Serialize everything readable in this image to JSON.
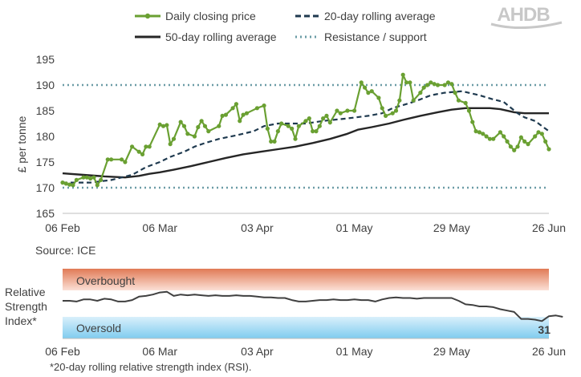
{
  "logo": {
    "text": "AHDB",
    "color": "#c8c8c8"
  },
  "source": "Source: ICE",
  "footnote": "*20-day rolling relative strength index (RSI).",
  "colors": {
    "daily": "#6aa032",
    "ma20": "#1f3a4f",
    "ma50": "#262626",
    "levels": "#6b9ca6",
    "rsi": "#404040",
    "overbought_top": "#e07a55",
    "overbought_bottom": "#fbe0d6",
    "oversold_top": "#d9f0fb",
    "oversold_bottom": "#7fccef"
  },
  "legend": [
    {
      "label": "Daily closing price",
      "style": "daily"
    },
    {
      "label": "20-day rolling average",
      "style": "ma20"
    },
    {
      "label": "50-day rolling average",
      "style": "ma50"
    },
    {
      "label": "Resistance / support",
      "style": "levels"
    }
  ],
  "chart_data": [
    {
      "type": "line",
      "ylabel": "£ per tonne",
      "ylim": [
        165,
        195
      ],
      "yticks": [
        165,
        170,
        175,
        180,
        185,
        190,
        195
      ],
      "xlim": [
        0,
        140
      ],
      "x_unit": "days from 06 Feb",
      "xticks": [
        {
          "x": 0,
          "label": "06 Feb"
        },
        {
          "x": 28,
          "label": "06 Mar"
        },
        {
          "x": 56,
          "label": "03 Apr"
        },
        {
          "x": 84,
          "label": "01 May"
        },
        {
          "x": 112,
          "label": "29 May"
        },
        {
          "x": 140,
          "label": "26 Jun"
        }
      ],
      "reference_lines": [
        {
          "name": "Resistance / support",
          "y": 190
        },
        {
          "name": "Resistance / support",
          "y": 170
        }
      ],
      "series": [
        {
          "name": "Daily closing price",
          "points": [
            [
              0,
              171
            ],
            [
              1,
              170.8
            ],
            [
              2,
              170.6
            ],
            [
              3,
              170.5
            ],
            [
              4,
              171.5
            ],
            [
              6,
              172
            ],
            [
              7,
              172
            ],
            [
              8,
              171.8
            ],
            [
              9,
              172
            ],
            [
              10,
              170.5
            ],
            [
              11,
              171.5
            ],
            [
              13,
              175.5
            ],
            [
              14,
              175.5
            ],
            [
              17,
              175.5
            ],
            [
              18,
              175
            ],
            [
              20,
              178
            ],
            [
              22,
              177
            ],
            [
              23,
              176.5
            ],
            [
              24,
              178
            ],
            [
              25,
              178
            ],
            [
              28,
              182.3
            ],
            [
              29,
              182
            ],
            [
              30,
              182.2
            ],
            [
              31,
              178.5
            ],
            [
              32,
              179.5
            ],
            [
              34,
              182.8
            ],
            [
              35,
              182
            ],
            [
              36,
              180.5
            ],
            [
              38,
              180
            ],
            [
              39,
              181.8
            ],
            [
              40,
              183
            ],
            [
              41,
              182
            ],
            [
              42,
              181
            ],
            [
              45,
              182
            ],
            [
              46,
              184
            ],
            [
              47,
              184.2
            ],
            [
              49,
              185.5
            ],
            [
              50,
              186.3
            ],
            [
              51,
              183
            ],
            [
              52,
              184.2
            ],
            [
              53,
              184.5
            ],
            [
              56,
              185.5
            ],
            [
              58,
              186
            ],
            [
              59,
              181.5
            ],
            [
              60,
              179
            ],
            [
              61,
              179
            ],
            [
              62,
              181
            ],
            [
              63,
              182.5
            ],
            [
              65,
              182
            ],
            [
              66,
              181.5
            ],
            [
              67,
              179.5
            ],
            [
              68,
              182
            ],
            [
              70,
              183
            ],
            [
              71,
              183.5
            ],
            [
              72,
              181
            ],
            [
              73,
              181
            ],
            [
              74,
              182
            ],
            [
              75,
              183.5
            ],
            [
              76,
              184
            ],
            [
              77,
              182.7
            ],
            [
              79,
              185
            ],
            [
              80,
              184.5
            ],
            [
              82,
              185
            ],
            [
              84,
              185
            ],
            [
              86,
              190.5
            ],
            [
              87,
              189.5
            ],
            [
              88,
              188.5
            ],
            [
              89,
              188.8
            ],
            [
              91,
              187.5
            ],
            [
              92,
              185.5
            ],
            [
              93,
              184
            ],
            [
              95,
              184.5
            ],
            [
              96,
              185
            ],
            [
              97,
              187
            ],
            [
              98,
              192
            ],
            [
              99,
              190.5
            ],
            [
              100,
              190.5
            ],
            [
              101,
              187
            ],
            [
              103,
              188.5
            ],
            [
              104,
              189.5
            ],
            [
              105,
              190
            ],
            [
              106,
              190.5
            ],
            [
              107,
              190.2
            ],
            [
              108,
              190
            ],
            [
              110,
              190
            ],
            [
              111,
              190.5
            ],
            [
              112,
              190.2
            ],
            [
              113,
              188.5
            ],
            [
              114,
              187
            ],
            [
              116,
              186.5
            ],
            [
              117,
              185
            ],
            [
              118,
              182.8
            ],
            [
              119,
              181
            ],
            [
              120,
              180.8
            ],
            [
              121,
              180.5
            ],
            [
              122,
              180
            ],
            [
              123,
              179.5
            ],
            [
              124,
              179.5
            ],
            [
              126,
              180.8
            ],
            [
              127,
              180
            ],
            [
              128,
              179
            ],
            [
              129,
              178
            ],
            [
              130,
              177.3
            ],
            [
              131,
              178
            ],
            [
              132,
              179.8
            ],
            [
              133,
              179
            ],
            [
              134,
              178.5
            ],
            [
              136,
              180
            ],
            [
              137,
              180.8
            ],
            [
              138,
              180.5
            ],
            [
              139,
              179
            ],
            [
              140,
              177.5
            ]
          ]
        },
        {
          "name": "20-day rolling average",
          "points": [
            [
              0,
              171
            ],
            [
              8,
              171
            ],
            [
              14,
              171.5
            ],
            [
              17,
              172
            ],
            [
              20,
              172.5
            ],
            [
              24,
              174
            ],
            [
              28,
              175
            ],
            [
              31,
              176
            ],
            [
              35,
              177
            ],
            [
              38,
              178
            ],
            [
              41,
              178.7
            ],
            [
              45,
              179.5
            ],
            [
              50,
              180.2
            ],
            [
              55,
              181
            ],
            [
              58,
              182
            ],
            [
              62,
              182.5
            ],
            [
              70,
              182.5
            ],
            [
              75,
              183
            ],
            [
              82,
              183.5
            ],
            [
              88,
              184
            ],
            [
              92,
              184.5
            ],
            [
              95,
              185.5
            ],
            [
              100,
              186.5
            ],
            [
              103,
              187.2
            ],
            [
              106,
              188
            ],
            [
              110,
              188.5
            ],
            [
              115,
              188.8
            ],
            [
              120,
              188
            ],
            [
              124,
              187.2
            ],
            [
              127,
              186.7
            ],
            [
              131,
              184.5
            ],
            [
              133,
              183.7
            ],
            [
              136,
              183
            ],
            [
              139,
              181.5
            ],
            [
              140,
              181
            ]
          ]
        },
        {
          "name": "50-day rolling average",
          "points": [
            [
              0,
              172.8
            ],
            [
              6,
              172.5
            ],
            [
              12,
              172.2
            ],
            [
              18,
              172
            ],
            [
              22,
              172.3
            ],
            [
              25,
              172.7
            ],
            [
              28,
              173
            ],
            [
              32,
              173.5
            ],
            [
              37,
              174.2
            ],
            [
              42,
              175
            ],
            [
              47,
              175.8
            ],
            [
              52,
              176.5
            ],
            [
              57,
              177
            ],
            [
              62,
              177.5
            ],
            [
              67,
              178
            ],
            [
              72,
              178.7
            ],
            [
              77,
              179.5
            ],
            [
              82,
              180.5
            ],
            [
              85,
              181.3
            ],
            [
              89,
              181.8
            ],
            [
              94,
              182.5
            ],
            [
              98,
              183.2
            ],
            [
              103,
              184
            ],
            [
              108,
              184.7
            ],
            [
              112,
              185.2
            ],
            [
              116,
              185.5
            ],
            [
              123,
              185.5
            ],
            [
              126,
              185.3
            ],
            [
              130,
              184.7
            ],
            [
              133,
              184.5
            ],
            [
              140,
              184.5
            ]
          ]
        }
      ]
    },
    {
      "type": "line",
      "ylabel": "Relative Strength Index*",
      "ylim": [
        0,
        100
      ],
      "bands": [
        {
          "label": "Overbought",
          "y": [
            70,
            100
          ]
        },
        {
          "label": "Oversold",
          "y": [
            0,
            30
          ]
        }
      ],
      "last_value_label": "31",
      "xlim": [
        0,
        140
      ],
      "xticks": [
        {
          "x": 0,
          "label": "06 Feb"
        },
        {
          "x": 28,
          "label": "06 Mar"
        },
        {
          "x": 56,
          "label": "03 Apr"
        },
        {
          "x": 84,
          "label": "01 May"
        },
        {
          "x": 112,
          "label": "29 May"
        },
        {
          "x": 140,
          "label": "26 Jun"
        }
      ],
      "series": [
        {
          "name": "RSI",
          "points": [
            [
              0,
              54
            ],
            [
              2,
              54
            ],
            [
              4,
              53
            ],
            [
              6,
              56
            ],
            [
              8,
              56
            ],
            [
              10,
              54
            ],
            [
              12,
              57
            ],
            [
              14,
              56
            ],
            [
              16,
              53
            ],
            [
              18,
              53
            ],
            [
              20,
              55
            ],
            [
              22,
              60
            ],
            [
              24,
              61
            ],
            [
              26,
              63
            ],
            [
              28,
              66
            ],
            [
              30,
              67
            ],
            [
              32,
              61
            ],
            [
              34,
              63
            ],
            [
              36,
              62
            ],
            [
              38,
              63
            ],
            [
              40,
              62
            ],
            [
              42,
              61
            ],
            [
              44,
              62
            ],
            [
              46,
              61
            ],
            [
              48,
              61
            ],
            [
              50,
              62
            ],
            [
              52,
              61
            ],
            [
              54,
              61
            ],
            [
              56,
              60
            ],
            [
              58,
              59
            ],
            [
              60,
              59
            ],
            [
              62,
              58
            ],
            [
              64,
              58
            ],
            [
              66,
              55
            ],
            [
              68,
              53
            ],
            [
              70,
              53
            ],
            [
              72,
              54
            ],
            [
              74,
              55
            ],
            [
              76,
              55
            ],
            [
              78,
              56
            ],
            [
              80,
              55
            ],
            [
              82,
              55
            ],
            [
              84,
              56
            ],
            [
              86,
              55
            ],
            [
              88,
              55
            ],
            [
              90,
              53
            ],
            [
              92,
              56
            ],
            [
              94,
              58
            ],
            [
              96,
              59
            ],
            [
              98,
              58
            ],
            [
              100,
              58
            ],
            [
              102,
              57
            ],
            [
              104,
              58
            ],
            [
              106,
              58
            ],
            [
              108,
              58
            ],
            [
              110,
              58
            ],
            [
              112,
              58
            ],
            [
              114,
              54
            ],
            [
              116,
              49
            ],
            [
              118,
              48
            ],
            [
              120,
              46
            ],
            [
              122,
              46
            ],
            [
              124,
              45
            ],
            [
              126,
              42
            ],
            [
              128,
              40
            ],
            [
              130,
              38
            ],
            [
              132,
              28
            ],
            [
              134,
              28
            ],
            [
              136,
              27
            ],
            [
              138,
              25
            ],
            [
              140,
              32
            ],
            [
              142,
              33
            ],
            [
              144,
              31
            ]
          ]
        }
      ]
    }
  ]
}
